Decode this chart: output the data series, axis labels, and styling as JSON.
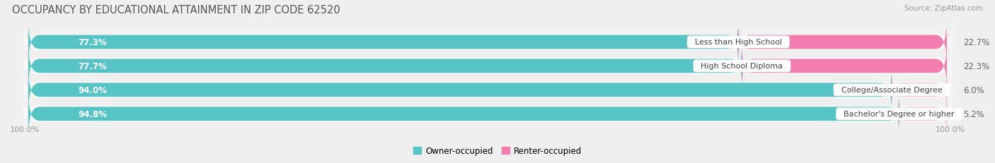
{
  "title": "OCCUPANCY BY EDUCATIONAL ATTAINMENT IN ZIP CODE 62520",
  "source": "Source: ZipAtlas.com",
  "categories": [
    "Less than High School",
    "High School Diploma",
    "College/Associate Degree",
    "Bachelor's Degree or higher"
  ],
  "owner_pct": [
    77.3,
    77.7,
    94.0,
    94.8
  ],
  "renter_pct": [
    22.7,
    22.3,
    6.0,
    5.2
  ],
  "owner_color": "#56C4C4",
  "renter_color": "#F47DB0",
  "renter_color_light": "#F8B8D0",
  "bg_color": "#efefef",
  "bar_bg_color": "#e0e0e0",
  "row_bg_color": "#f8f8f8",
  "title_fontsize": 10.5,
  "label_fontsize": 8.5,
  "tick_fontsize": 8,
  "source_fontsize": 7.5,
  "legend_fontsize": 8.5,
  "axis_label_left": "100.0%",
  "axis_label_right": "100.0%"
}
